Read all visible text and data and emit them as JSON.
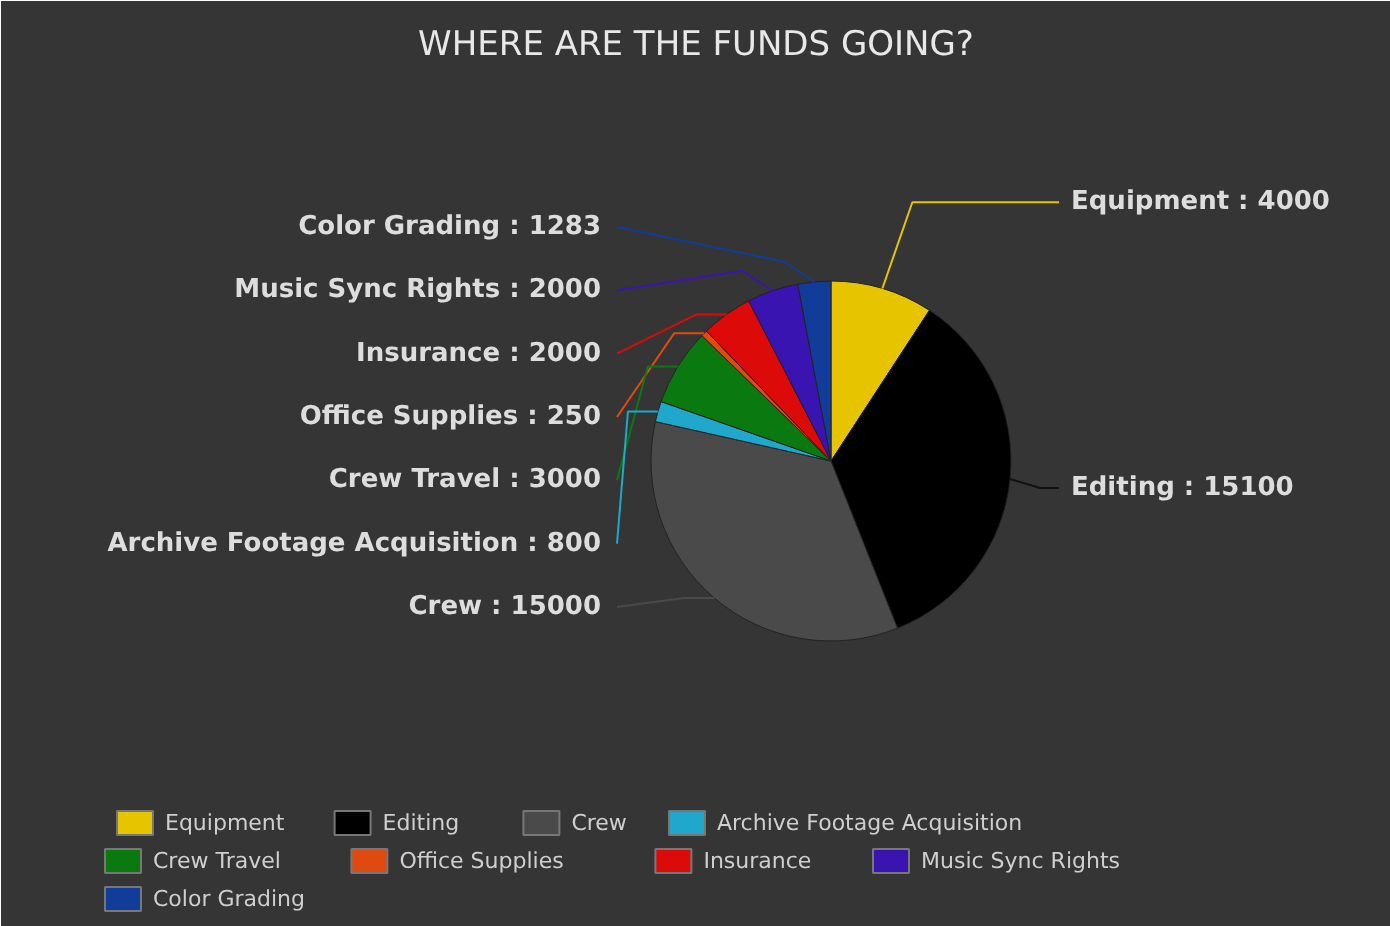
{
  "chart_data": {
    "type": "pie",
    "title": "WHERE ARE THE FUNDS GOING?",
    "categories": [
      "Equipment",
      "Editing",
      "Crew",
      "Archive Footage Acquisition",
      "Crew Travel",
      "Office Supplies",
      "Insurance",
      "Music Sync Rights",
      "Color Grading"
    ],
    "values": [
      4000,
      15100,
      15000,
      800,
      3000,
      250,
      2000,
      2000,
      1283
    ],
    "colors": [
      "#e6c400",
      "#000000",
      "#4a4a4a",
      "#20a8cc",
      "#0a7a10",
      "#e04a10",
      "#dd0a0a",
      "#3a14b0",
      "#123c9a"
    ],
    "value_labels": [
      "Equipment : 4000",
      "Editing : 15100",
      "Crew : 15000",
      "Archive Footage Acquisition : 800",
      "Crew Travel : 3000",
      "Office Supplies : 250",
      "Insurance : 2000",
      "Music Sync Rights : 2000",
      "Color Grading : 1283"
    ],
    "legend": "bottom"
  }
}
